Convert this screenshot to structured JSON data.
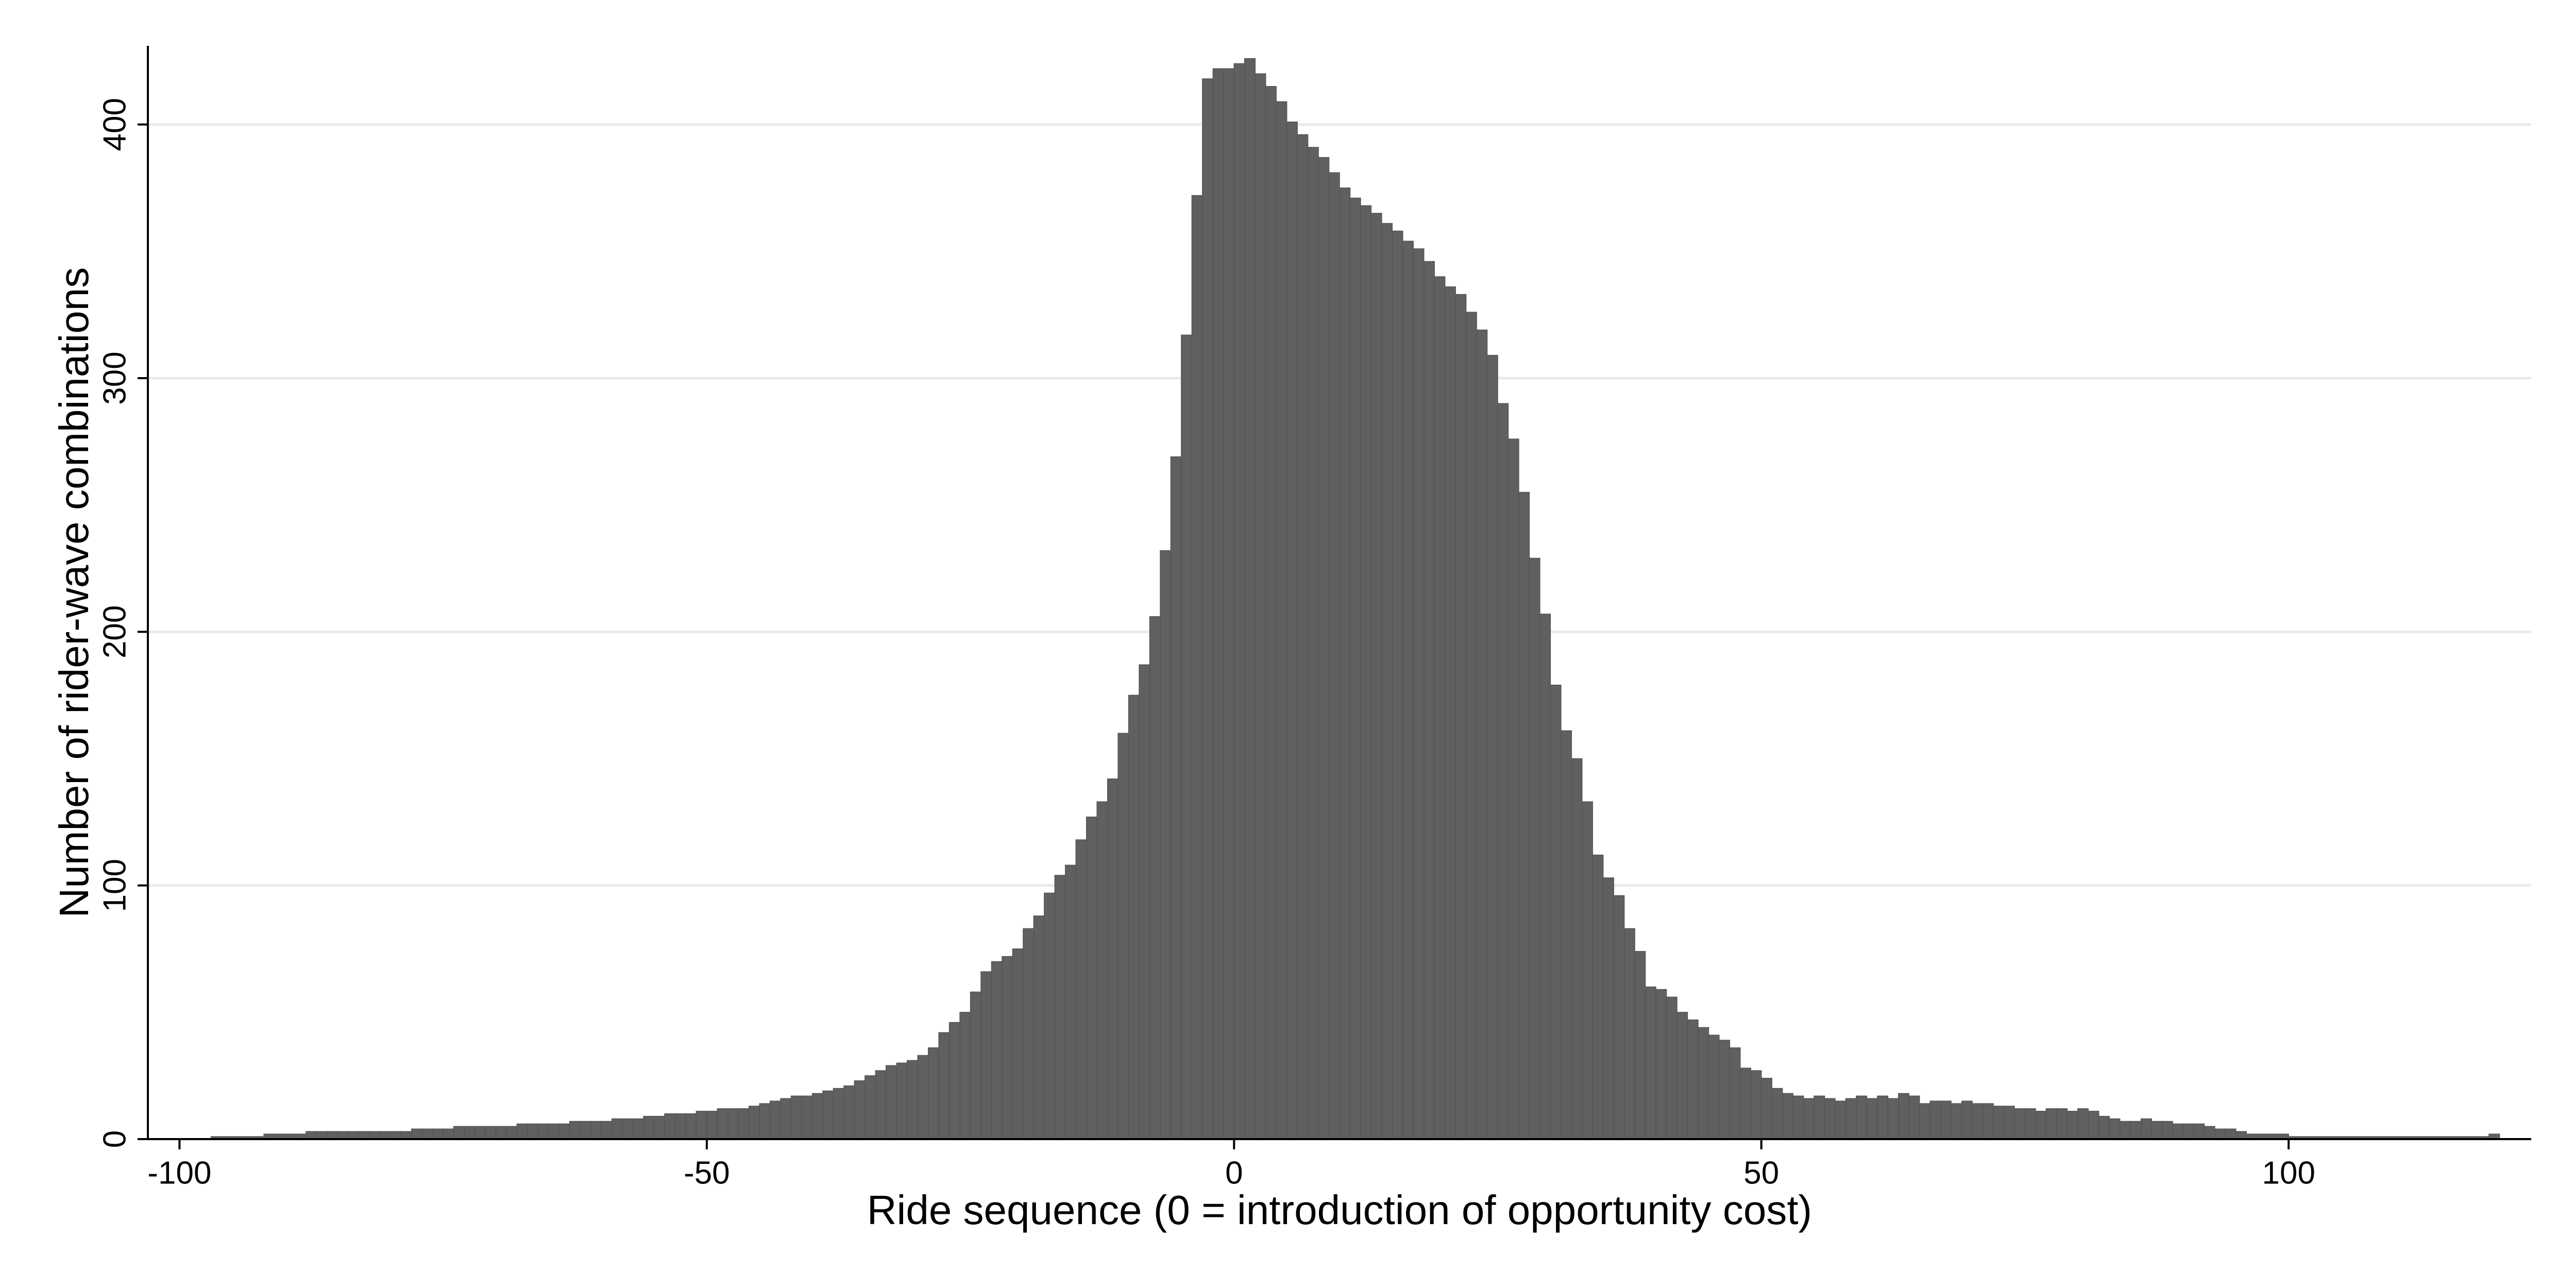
{
  "chart_data": {
    "type": "histogram",
    "xlabel": "Ride sequence (0 = introduction of opportunity cost)",
    "ylabel": "Number of rider-wave combinations",
    "color": "#606060",
    "grid": true,
    "xlim": [
      -103,
      123
    ],
    "xticks": [
      -100,
      -50,
      0,
      50,
      100
    ],
    "ylim": [
      0,
      431
    ],
    "yticks": [
      0,
      100,
      200,
      300,
      400
    ],
    "bins": [
      -97,
      -96,
      -95,
      -94,
      -93,
      -92,
      -91,
      -90,
      -89,
      -88,
      -87,
      -86,
      -85,
      -84,
      -83,
      -82,
      -81,
      -80,
      -79,
      -78,
      -77,
      -76,
      -75,
      -74,
      -73,
      -72,
      -71,
      -70,
      -69,
      -68,
      -67,
      -66,
      -65,
      -64,
      -63,
      -62,
      -61,
      -60,
      -59,
      -58,
      -57,
      -56,
      -55,
      -54,
      -53,
      -52,
      -51,
      -50,
      -49,
      -48,
      -47,
      -46,
      -45,
      -44,
      -43,
      -42,
      -41,
      -40,
      -39,
      -38,
      -37,
      -36,
      -35,
      -34,
      -33,
      -32,
      -31,
      -30,
      -29,
      -28,
      -27,
      -26,
      -25,
      -24,
      -23,
      -22,
      -21,
      -20,
      -19,
      -18,
      -17,
      -16,
      -15,
      -14,
      -13,
      -12,
      -11,
      -10,
      -9,
      -8,
      -7,
      -6,
      -5,
      -4,
      -3,
      -2,
      -1,
      0,
      1,
      2,
      3,
      4,
      5,
      6,
      7,
      8,
      9,
      10,
      11,
      12,
      13,
      14,
      15,
      16,
      17,
      18,
      19,
      20,
      21,
      22,
      23,
      24,
      25,
      26,
      27,
      28,
      29,
      30,
      31,
      32,
      33,
      34,
      35,
      36,
      37,
      38,
      39,
      40,
      41,
      42,
      43,
      44,
      45,
      46,
      47,
      48,
      49,
      50,
      51,
      52,
      53,
      54,
      55,
      56,
      57,
      58,
      59,
      60,
      61,
      62,
      63,
      64,
      65,
      66,
      67,
      68,
      69,
      70,
      71,
      72,
      73,
      74,
      75,
      76,
      77,
      78,
      79,
      80,
      81,
      82,
      83,
      84,
      85,
      86,
      87,
      88,
      89,
      90,
      91,
      92,
      93,
      94,
      95,
      96,
      97,
      98,
      99,
      100,
      101,
      102,
      103,
      104,
      105,
      106,
      107,
      108,
      109,
      110,
      111,
      112,
      113,
      114,
      115,
      116,
      117,
      118,
      119,
      120
    ],
    "values": [
      1,
      1,
      1,
      1,
      1,
      2,
      2,
      2,
      2,
      3,
      3,
      3,
      3,
      3,
      3,
      3,
      3,
      3,
      3,
      4,
      4,
      4,
      4,
      5,
      5,
      5,
      5,
      5,
      5,
      6,
      6,
      6,
      6,
      6,
      7,
      7,
      7,
      7,
      8,
      8,
      8,
      9,
      9,
      10,
      10,
      10,
      11,
      11,
      12,
      12,
      12,
      13,
      14,
      15,
      16,
      17,
      17,
      18,
      19,
      20,
      21,
      23,
      25,
      27,
      29,
      30,
      31,
      33,
      36,
      42,
      46,
      50,
      58,
      66,
      70,
      72,
      75,
      83,
      88,
      97,
      104,
      108,
      118,
      127,
      133,
      142,
      160,
      175,
      187,
      206,
      232,
      269,
      317,
      372,
      418,
      422,
      422,
      424,
      426,
      420,
      415,
      409,
      401,
      396,
      391,
      387,
      381,
      375,
      371,
      368,
      365,
      361,
      358,
      354,
      351,
      346,
      340,
      336,
      333,
      326,
      319,
      309,
      290,
      276,
      255,
      229,
      207,
      179,
      161,
      150,
      133,
      112,
      103,
      96,
      83,
      74,
      60,
      59,
      56,
      50,
      47,
      44,
      41,
      39,
      36,
      28,
      27,
      24,
      20,
      18,
      17,
      16,
      17,
      16,
      15,
      16,
      17,
      16,
      17,
      16,
      18,
      17,
      14,
      15,
      15,
      14,
      15,
      14,
      14,
      13,
      13,
      12,
      12,
      11,
      12,
      12,
      11,
      12,
      11,
      9,
      8,
      7,
      7,
      8,
      7,
      7,
      6,
      6,
      6,
      5,
      4,
      4,
      3,
      2,
      2,
      2,
      2,
      1,
      1,
      1,
      1,
      1,
      1,
      1,
      1,
      1,
      1,
      1,
      1,
      1,
      1,
      1,
      1,
      1,
      1,
      1,
      2
    ]
  }
}
